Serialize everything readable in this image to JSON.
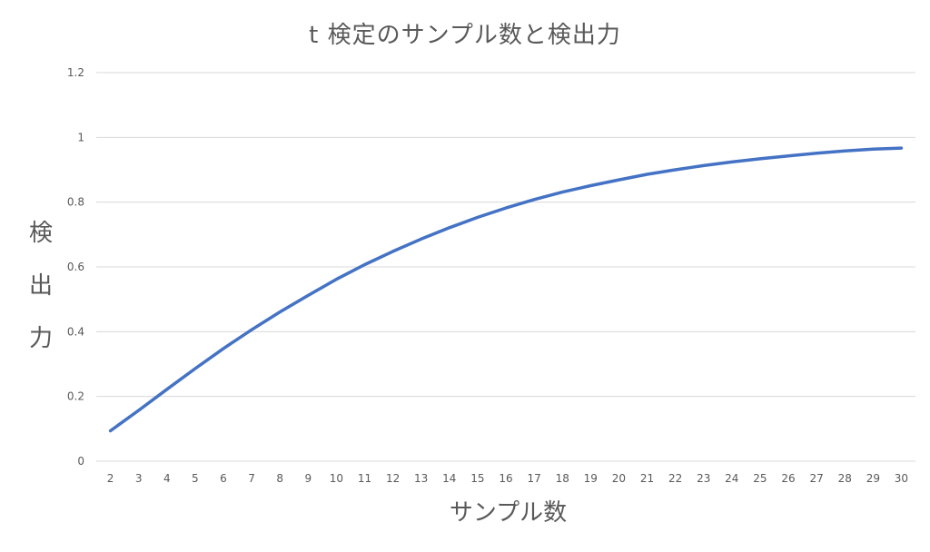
{
  "chart_data": {
    "type": "line",
    "title": "t 検定のサンプル数と検出力",
    "xlabel": "サンプル数",
    "ylabel": "検出力",
    "x": [
      2,
      3,
      4,
      5,
      6,
      7,
      8,
      9,
      10,
      11,
      12,
      13,
      14,
      15,
      16,
      17,
      18,
      19,
      20,
      21,
      22,
      23,
      24,
      25,
      26,
      27,
      28,
      29,
      30
    ],
    "series": [
      {
        "values": [
          0.094,
          0.157,
          0.222,
          0.286,
          0.348,
          0.406,
          0.461,
          0.512,
          0.562,
          0.607,
          0.648,
          0.686,
          0.721,
          0.753,
          0.782,
          0.808,
          0.831,
          0.851,
          0.869,
          0.886,
          0.9,
          0.913,
          0.924,
          0.934,
          0.943,
          0.951,
          0.958,
          0.964,
          0.967
        ],
        "color": "#4472c4"
      }
    ],
    "ylim": [
      0,
      1.2
    ],
    "yticks": [
      "0",
      "0.2",
      "0.4",
      "0.6",
      "0.8",
      "1",
      "1.2"
    ],
    "grid": true,
    "legend": "none"
  }
}
